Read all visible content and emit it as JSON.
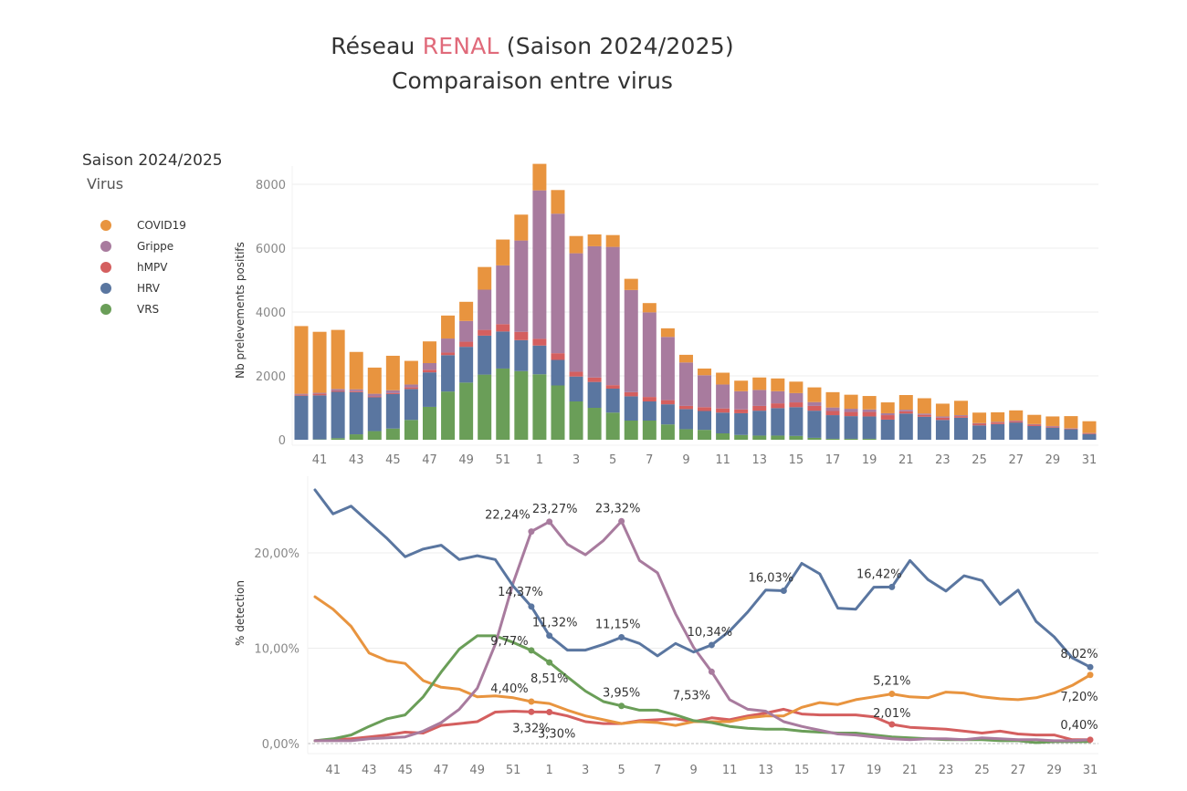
{
  "header": {
    "title_prefix": "Réseau ",
    "title_highlight": "RENAL",
    "title_suffix": " (Saison 2024/2025)",
    "subtitle": "Comparaison entre virus",
    "highlight_color": "#e06a7a"
  },
  "legend": {
    "title": "Saison 2024/2025",
    "subtitle": "Virus",
    "items": [
      {
        "label": "COVID19",
        "color": "#e8943f"
      },
      {
        "label": "Grippe",
        "color": "#a87b9e"
      },
      {
        "label": "hMPV",
        "color": "#d45f5f"
      },
      {
        "label": "HRV",
        "color": "#5a76a0"
      },
      {
        "label": "VRS",
        "color": "#6a9e58"
      }
    ]
  },
  "chart_data": [
    {
      "type": "bar",
      "stacked": true,
      "ylabel": "Nb prelevements positifs",
      "ylim": [
        0,
        8500
      ],
      "yticks": [
        0,
        2000,
        4000,
        6000,
        8000
      ],
      "ytick_labels": [
        "0",
        "2000",
        "4000",
        "6000",
        "8000"
      ],
      "grid": true,
      "categories": [
        "40",
        "41",
        "42",
        "43",
        "44",
        "45",
        "46",
        "47",
        "48",
        "49",
        "50",
        "51",
        "52",
        "1",
        "2",
        "3",
        "4",
        "5",
        "6",
        "7",
        "8",
        "9",
        "10",
        "11",
        "12",
        "13",
        "14",
        "15",
        "16",
        "17",
        "18",
        "19",
        "20",
        "21",
        "22",
        "23",
        "24",
        "25",
        "26",
        "27",
        "28",
        "29",
        "30",
        "31"
      ],
      "xtick_labels": [
        "41",
        "43",
        "45",
        "47",
        "49",
        "51",
        "1",
        "3",
        "5",
        "7",
        "9",
        "11",
        "13",
        "15",
        "17",
        "19",
        "21",
        "23",
        "25",
        "27",
        "29",
        "31"
      ],
      "series": [
        {
          "name": "VRS",
          "color": "#6a9e58",
          "values": [
            0,
            10,
            50,
            170,
            270,
            350,
            620,
            1030,
            1510,
            1790,
            2040,
            2230,
            2150,
            2050,
            1700,
            1200,
            1000,
            850,
            600,
            600,
            480,
            330,
            310,
            200,
            150,
            130,
            130,
            120,
            60,
            30,
            30,
            30,
            0,
            0,
            0,
            0,
            0,
            0,
            0,
            0,
            0,
            0,
            0,
            0
          ]
        },
        {
          "name": "HRV",
          "color": "#5a76a0",
          "values": [
            1380,
            1380,
            1450,
            1320,
            1060,
            1080,
            970,
            1080,
            1140,
            1120,
            1220,
            1160,
            970,
            900,
            800,
            780,
            810,
            750,
            760,
            600,
            630,
            630,
            590,
            650,
            680,
            780,
            860,
            900,
            850,
            740,
            710,
            700,
            630,
            820,
            720,
            620,
            690,
            450,
            490,
            540,
            430,
            380,
            330,
            180
          ]
        },
        {
          "name": "hMPV",
          "color": "#d45f5f",
          "values": [
            30,
            50,
            30,
            30,
            30,
            30,
            50,
            80,
            80,
            160,
            180,
            230,
            260,
            210,
            210,
            150,
            140,
            110,
            130,
            140,
            130,
            100,
            120,
            130,
            120,
            150,
            150,
            150,
            150,
            130,
            130,
            140,
            140,
            70,
            60,
            70,
            50,
            50,
            50,
            40,
            40,
            30,
            20,
            20
          ]
        },
        {
          "name": "Grippe",
          "color": "#a87b9e",
          "values": [
            30,
            30,
            60,
            60,
            80,
            90,
            90,
            210,
            440,
            650,
            1260,
            1840,
            2860,
            4650,
            4370,
            3710,
            4110,
            4330,
            3200,
            2650,
            1980,
            1360,
            1000,
            750,
            570,
            500,
            380,
            290,
            120,
            110,
            100,
            80,
            60,
            50,
            40,
            40,
            30,
            20,
            20,
            20,
            20,
            20,
            10,
            10
          ]
        },
        {
          "name": "COVID19",
          "color": "#e8943f",
          "values": [
            2120,
            1910,
            1850,
            1170,
            820,
            1080,
            740,
            680,
            720,
            600,
            710,
            810,
            810,
            830,
            740,
            540,
            370,
            370,
            350,
            290,
            270,
            240,
            210,
            370,
            330,
            390,
            400,
            360,
            460,
            480,
            440,
            420,
            340,
            460,
            480,
            400,
            450,
            330,
            300,
            320,
            290,
            300,
            380,
            370
          ]
        }
      ]
    },
    {
      "type": "line",
      "ylabel": "% detection",
      "ylim": [
        0,
        27
      ],
      "yticks": [
        0,
        10,
        20
      ],
      "ytick_labels": [
        "0,00%",
        "10,00%",
        "20,00%"
      ],
      "grid": true,
      "categories": [
        "40",
        "41",
        "42",
        "43",
        "44",
        "45",
        "46",
        "47",
        "48",
        "49",
        "50",
        "51",
        "52",
        "1",
        "2",
        "3",
        "4",
        "5",
        "6",
        "7",
        "8",
        "9",
        "10",
        "11",
        "12",
        "13",
        "14",
        "15",
        "16",
        "17",
        "18",
        "19",
        "20",
        "21",
        "22",
        "23",
        "24",
        "25",
        "26",
        "27",
        "28",
        "29",
        "30",
        "31"
      ],
      "xtick_labels": [
        "41",
        "43",
        "45",
        "47",
        "49",
        "51",
        "1",
        "3",
        "5",
        "7",
        "9",
        "11",
        "13",
        "15",
        "17",
        "19",
        "21",
        "23",
        "25",
        "27",
        "29",
        "31"
      ],
      "series": [
        {
          "name": "HRV",
          "color": "#5a76a0",
          "values": [
            26.6,
            24.1,
            24.9,
            23.2,
            21.5,
            19.6,
            20.4,
            20.8,
            19.3,
            19.7,
            19.3,
            16.5,
            14.37,
            11.32,
            9.8,
            9.8,
            10.4,
            11.15,
            10.5,
            9.2,
            10.5,
            9.6,
            10.34,
            11.8,
            13.8,
            16.1,
            16.03,
            18.9,
            17.8,
            14.2,
            14.1,
            16.4,
            16.42,
            19.2,
            17.2,
            16.0,
            17.6,
            17.1,
            14.6,
            16.1,
            12.8,
            11.2,
            9.0,
            8.02
          ]
        },
        {
          "name": "COVID19",
          "color": "#e8943f",
          "values": [
            15.4,
            14.1,
            12.3,
            9.5,
            8.7,
            8.4,
            6.6,
            5.9,
            5.7,
            4.9,
            5.0,
            4.8,
            4.4,
            4.2,
            3.5,
            2.9,
            2.5,
            2.1,
            2.3,
            2.2,
            1.9,
            2.3,
            2.3,
            2.3,
            2.7,
            2.9,
            2.9,
            3.8,
            4.3,
            4.1,
            4.6,
            4.9,
            5.21,
            4.9,
            4.8,
            5.4,
            5.3,
            4.9,
            4.7,
            4.6,
            4.8,
            5.3,
            6.1,
            7.2
          ]
        },
        {
          "name": "VRS",
          "color": "#6a9e58",
          "values": [
            0.3,
            0.5,
            0.9,
            1.8,
            2.6,
            3.0,
            4.9,
            7.5,
            9.9,
            11.3,
            11.3,
            10.6,
            9.77,
            8.51,
            7.0,
            5.5,
            4.4,
            3.95,
            3.5,
            3.5,
            3.0,
            2.4,
            2.2,
            1.8,
            1.6,
            1.5,
            1.5,
            1.3,
            1.2,
            1.1,
            1.1,
            0.9,
            0.7,
            0.6,
            0.5,
            0.4,
            0.4,
            0.4,
            0.3,
            0.3,
            0.1,
            0.2,
            0.2,
            0.2
          ]
        },
        {
          "name": "hMPV",
          "color": "#d45f5f",
          "values": [
            0.3,
            0.4,
            0.5,
            0.7,
            0.9,
            1.2,
            1.1,
            1.9,
            2.1,
            2.3,
            3.3,
            3.4,
            3.32,
            3.3,
            2.9,
            2.3,
            2.1,
            2.1,
            2.4,
            2.5,
            2.6,
            2.3,
            2.7,
            2.5,
            2.9,
            3.2,
            3.6,
            3.1,
            3.0,
            3.0,
            3.0,
            2.8,
            2.01,
            1.7,
            1.6,
            1.5,
            1.3,
            1.1,
            1.3,
            1.0,
            0.9,
            0.9,
            0.4,
            0.4
          ]
        },
        {
          "name": "Grippe",
          "color": "#a87b9e",
          "values": [
            0.3,
            0.3,
            0.3,
            0.5,
            0.6,
            0.7,
            1.3,
            2.2,
            3.6,
            5.8,
            10.4,
            16.9,
            22.24,
            23.27,
            20.9,
            19.8,
            21.3,
            23.32,
            19.2,
            17.9,
            13.6,
            10.1,
            7.53,
            4.6,
            3.6,
            3.4,
            2.3,
            1.8,
            1.4,
            1.0,
            0.9,
            0.7,
            0.5,
            0.4,
            0.5,
            0.5,
            0.4,
            0.6,
            0.5,
            0.4,
            0.4,
            0.3,
            0.3,
            0.4
          ]
        }
      ],
      "annotations": [
        {
          "series": "Grippe",
          "week": "52",
          "text": "22,24%"
        },
        {
          "series": "Grippe",
          "week": "1",
          "text": "23,27%"
        },
        {
          "series": "Grippe",
          "week": "5",
          "text": "23,32%"
        },
        {
          "series": "Grippe",
          "week": "10",
          "text": "7,53%"
        },
        {
          "series": "HRV",
          "week": "52",
          "text": "14,37%"
        },
        {
          "series": "HRV",
          "week": "1",
          "text": "11,32%"
        },
        {
          "series": "HRV",
          "week": "5",
          "text": "11,15%"
        },
        {
          "series": "HRV",
          "week": "10",
          "text": "10,34%"
        },
        {
          "series": "HRV",
          "week": "14",
          "text": "16,03%"
        },
        {
          "series": "HRV",
          "week": "20",
          "text": "16,42%"
        },
        {
          "series": "HRV",
          "week": "31",
          "text": "8,02%"
        },
        {
          "series": "VRS",
          "week": "52",
          "text": "9,77%"
        },
        {
          "series": "VRS",
          "week": "1",
          "text": "8,51%"
        },
        {
          "series": "VRS",
          "week": "5",
          "text": "3,95%"
        },
        {
          "series": "COVID19",
          "week": "52",
          "text": "4,40%"
        },
        {
          "series": "COVID19",
          "week": "20",
          "text": "5,21%"
        },
        {
          "series": "COVID19",
          "week": "31",
          "text": "7,20%"
        },
        {
          "series": "hMPV",
          "week": "52",
          "text": "3,32%"
        },
        {
          "series": "hMPV",
          "week": "1",
          "text": "3,30%"
        },
        {
          "series": "hMPV",
          "week": "20",
          "text": "2,01%"
        },
        {
          "series": "hMPV",
          "week": "31",
          "text": "0,40%"
        }
      ]
    }
  ]
}
